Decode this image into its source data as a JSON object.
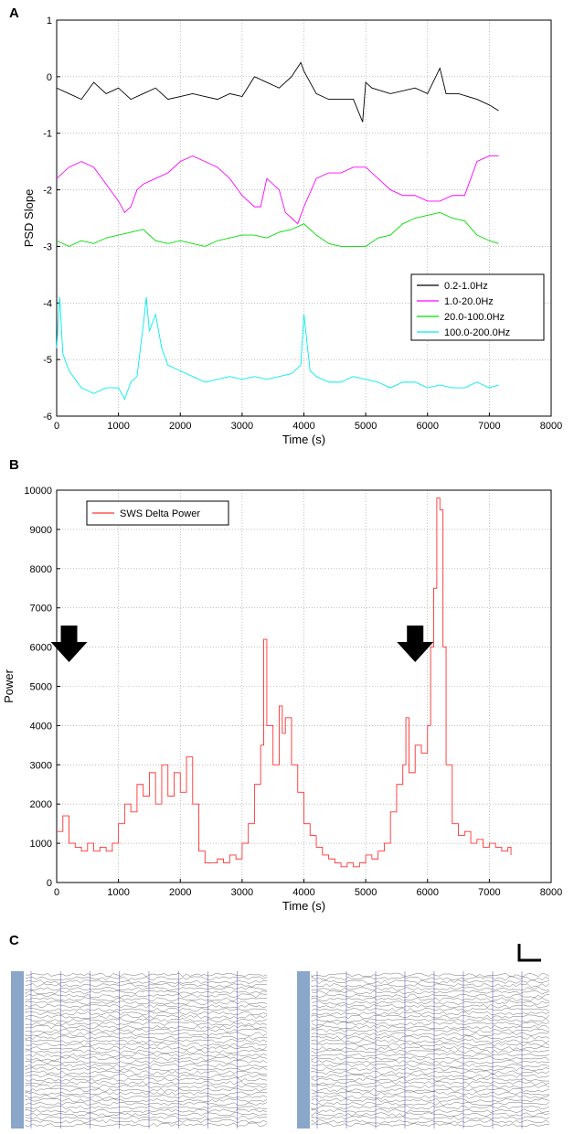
{
  "panels": {
    "a_letter": "A",
    "b_letter": "B",
    "c_letter": "C"
  },
  "chart_data": [
    {
      "type": "line",
      "xlabel": "Time (s)",
      "ylabel": "PSD Slope",
      "xlim": [
        0,
        8000
      ],
      "ylim": [
        -6,
        1
      ],
      "xticks": [
        0,
        1000,
        2000,
        3000,
        4000,
        5000,
        6000,
        7000,
        8000
      ],
      "yticks": [
        1,
        0,
        -1,
        -2,
        -3,
        -4,
        -5,
        -6
      ],
      "grid": true,
      "legend_position": "lower-right",
      "series": [
        {
          "name": "0.2-1.0Hz",
          "color": "#000000",
          "x": [
            0,
            200,
            400,
            600,
            800,
            1000,
            1200,
            1400,
            1600,
            1800,
            2000,
            2200,
            2400,
            2600,
            2800,
            3000,
            3200,
            3400,
            3600,
            3800,
            3950,
            4000,
            4200,
            4400,
            4600,
            4800,
            4950,
            5000,
            5100,
            5400,
            5800,
            6000,
            6200,
            6300,
            6500,
            6800,
            7000,
            7150
          ],
          "y": [
            -0.2,
            -0.3,
            -0.4,
            -0.1,
            -0.3,
            -0.2,
            -0.4,
            -0.3,
            -0.2,
            -0.4,
            -0.35,
            -0.3,
            -0.35,
            -0.4,
            -0.3,
            -0.35,
            0.0,
            -0.1,
            -0.2,
            0.0,
            0.25,
            0.1,
            -0.3,
            -0.4,
            -0.4,
            -0.4,
            -0.8,
            -0.1,
            -0.2,
            -0.3,
            -0.2,
            -0.3,
            0.15,
            -0.3,
            -0.3,
            -0.4,
            -0.5,
            -0.6
          ]
        },
        {
          "name": "1.0-20.0Hz",
          "color": "#ff00ff",
          "x": [
            0,
            200,
            400,
            600,
            800,
            1000,
            1100,
            1200,
            1300,
            1400,
            1600,
            1800,
            2000,
            2200,
            2400,
            2600,
            2800,
            3000,
            3200,
            3300,
            3400,
            3600,
            3700,
            3800,
            3900,
            4000,
            4200,
            4400,
            4600,
            4800,
            5000,
            5200,
            5400,
            5600,
            5800,
            6000,
            6200,
            6400,
            6600,
            6800,
            7000,
            7150
          ],
          "y": [
            -1.8,
            -1.6,
            -1.5,
            -1.6,
            -1.9,
            -2.2,
            -2.4,
            -2.3,
            -2.0,
            -1.9,
            -1.8,
            -1.7,
            -1.5,
            -1.4,
            -1.5,
            -1.6,
            -1.8,
            -2.1,
            -2.3,
            -2.3,
            -1.8,
            -2.0,
            -2.4,
            -2.5,
            -2.6,
            -2.3,
            -1.8,
            -1.7,
            -1.7,
            -1.6,
            -1.6,
            -1.8,
            -2.0,
            -2.1,
            -2.1,
            -2.2,
            -2.2,
            -2.1,
            -2.1,
            -1.5,
            -1.4,
            -1.4
          ]
        },
        {
          "name": "20.0-100.0Hz",
          "color": "#00dd00",
          "x": [
            0,
            200,
            400,
            600,
            800,
            1000,
            1200,
            1400,
            1600,
            1800,
            2000,
            2200,
            2400,
            2600,
            2800,
            3000,
            3200,
            3400,
            3600,
            3800,
            4000,
            4200,
            4400,
            4600,
            4800,
            5000,
            5200,
            5400,
            5600,
            5800,
            6000,
            6200,
            6400,
            6600,
            6800,
            7000,
            7150
          ],
          "y": [
            -2.9,
            -3.0,
            -2.9,
            -2.95,
            -2.85,
            -2.8,
            -2.75,
            -2.7,
            -2.9,
            -2.95,
            -2.9,
            -2.95,
            -3.0,
            -2.9,
            -2.85,
            -2.8,
            -2.8,
            -2.85,
            -2.75,
            -2.7,
            -2.6,
            -2.8,
            -2.95,
            -3.0,
            -3.0,
            -3.0,
            -2.85,
            -2.8,
            -2.6,
            -2.5,
            -2.45,
            -2.4,
            -2.5,
            -2.55,
            -2.8,
            -2.9,
            -2.95
          ]
        },
        {
          "name": "100.0-200.0Hz",
          "color": "#00eeee",
          "x": [
            0,
            50,
            100,
            200,
            400,
            600,
            800,
            1000,
            1100,
            1200,
            1300,
            1400,
            1450,
            1500,
            1600,
            1700,
            1800,
            2000,
            2200,
            2400,
            2600,
            2800,
            3000,
            3200,
            3400,
            3600,
            3800,
            3950,
            4000,
            4100,
            4200,
            4400,
            4600,
            4800,
            5000,
            5200,
            5400,
            5600,
            5800,
            6000,
            6200,
            6400,
            6600,
            6800,
            7000,
            7150
          ],
          "y": [
            -4.8,
            -3.9,
            -4.9,
            -5.2,
            -5.5,
            -5.6,
            -5.5,
            -5.5,
            -5.7,
            -5.4,
            -5.3,
            -4.4,
            -3.9,
            -4.5,
            -4.2,
            -4.8,
            -5.1,
            -5.2,
            -5.3,
            -5.4,
            -5.35,
            -5.3,
            -5.35,
            -5.3,
            -5.35,
            -5.3,
            -5.25,
            -5.1,
            -4.2,
            -5.2,
            -5.3,
            -5.4,
            -5.4,
            -5.3,
            -5.35,
            -5.4,
            -5.5,
            -5.4,
            -5.4,
            -5.5,
            -5.45,
            -5.5,
            -5.5,
            -5.4,
            -5.5,
            -5.45
          ]
        }
      ]
    },
    {
      "type": "line",
      "xlabel": "Time (s)",
      "ylabel": "Power",
      "xlim": [
        0,
        8000
      ],
      "ylim": [
        0,
        10000
      ],
      "xticks": [
        0,
        1000,
        2000,
        3000,
        4000,
        5000,
        6000,
        7000,
        8000
      ],
      "yticks": [
        10000,
        9000,
        8000,
        7000,
        6000,
        5000,
        4000,
        3000,
        2000,
        1000,
        0
      ],
      "grid": true,
      "legend_position": "top-left",
      "annotations": [
        "down-arrow near x≈200",
        "down-arrow near x≈5800"
      ],
      "series": [
        {
          "name": "SWS Delta Power",
          "color": "#ff3333",
          "x": [
            0,
            100,
            200,
            300,
            400,
            500,
            600,
            700,
            800,
            900,
            1000,
            1100,
            1200,
            1300,
            1400,
            1500,
            1600,
            1700,
            1800,
            1900,
            2000,
            2100,
            2200,
            2300,
            2400,
            2500,
            2600,
            2700,
            2800,
            2900,
            3000,
            3100,
            3200,
            3300,
            3350,
            3400,
            3500,
            3600,
            3650,
            3700,
            3800,
            3900,
            4000,
            4100,
            4200,
            4300,
            4400,
            4500,
            4600,
            4700,
            4800,
            4900,
            5000,
            5100,
            5200,
            5300,
            5400,
            5500,
            5600,
            5650,
            5700,
            5800,
            5900,
            6000,
            6050,
            6100,
            6150,
            6200,
            6250,
            6300,
            6400,
            6500,
            6600,
            6700,
            6800,
            6900,
            7000,
            7100,
            7200,
            7300,
            7350
          ],
          "y": [
            1300,
            1700,
            1000,
            900,
            800,
            1000,
            800,
            900,
            800,
            1000,
            1500,
            2000,
            1800,
            2500,
            2200,
            2800,
            2000,
            3000,
            2200,
            2800,
            2300,
            3200,
            2000,
            800,
            500,
            500,
            600,
            500,
            700,
            600,
            1000,
            1500,
            2500,
            3500,
            6200,
            4000,
            3000,
            4500,
            3800,
            4200,
            3000,
            2300,
            1500,
            1200,
            900,
            700,
            600,
            500,
            400,
            500,
            400,
            500,
            700,
            600,
            800,
            1000,
            1800,
            2500,
            3000,
            4200,
            2800,
            3500,
            3300,
            4000,
            6000,
            7500,
            9800,
            9500,
            6000,
            3000,
            1500,
            1200,
            1300,
            1000,
            1100,
            900,
            1000,
            900,
            800,
            900,
            700
          ]
        }
      ]
    }
  ]
}
